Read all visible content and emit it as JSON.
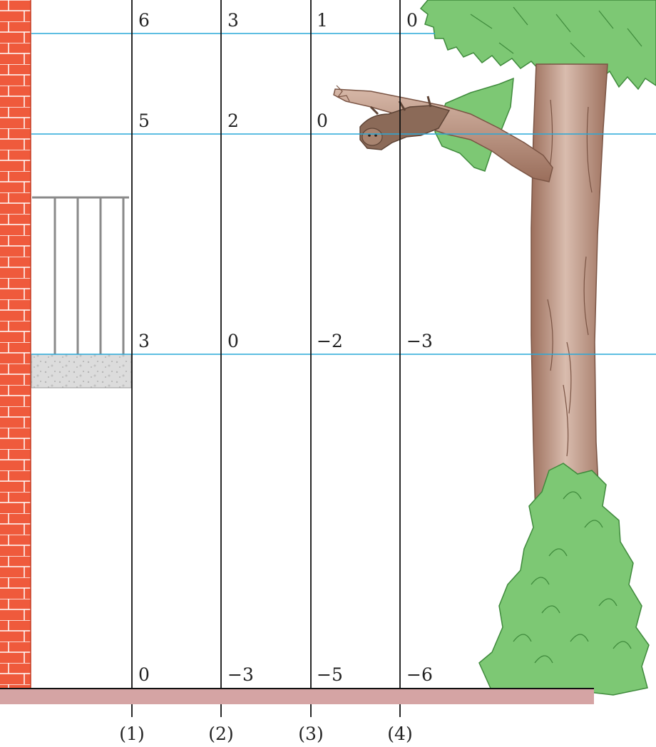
{
  "diagram": {
    "columns": [
      {
        "label": "(1)",
        "values": [
          "6",
          "5",
          "3",
          "0"
        ]
      },
      {
        "label": "(2)",
        "values": [
          "3",
          "2",
          "0",
          "−3"
        ]
      },
      {
        "label": "(3)",
        "values": [
          "1",
          "0",
          "−2",
          "−5"
        ]
      },
      {
        "label": "(4)",
        "values": [
          "0",
          "",
          "−3",
          "−6"
        ]
      }
    ],
    "colors": {
      "brick": "#ef5a3c",
      "mortar": "#ffffff",
      "level_line": "#29a8d8",
      "ground": "#d5a4a4",
      "trunk": "#b58a76",
      "leaf": "#7dc874",
      "leaf_edge": "#3f8a3c",
      "sloth": "#8b6a58"
    },
    "icons": {
      "wall": "brick-wall-icon",
      "balcony": "balcony-railing-icon",
      "tree": "tree-icon",
      "animal": "sloth-icon",
      "bush": "bush-icon"
    }
  }
}
